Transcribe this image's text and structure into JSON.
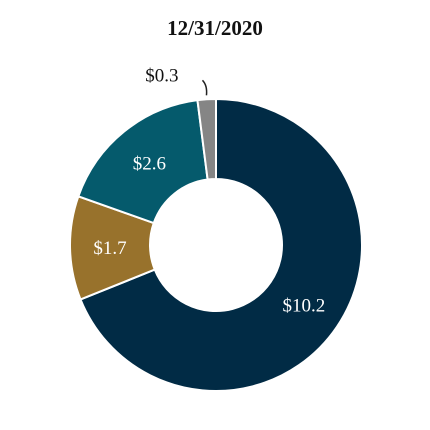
{
  "chart_data": {
    "type": "pie",
    "title": "12/31/2020",
    "categories": [
      "",
      "",
      "",
      ""
    ],
    "values": [
      10.2,
      1.7,
      2.6,
      0.3
    ],
    "labels": [
      "$10.2",
      "$1.7",
      "$2.6",
      "$0.3"
    ],
    "colors": [
      "#012b45",
      "#98722c",
      "#055a6c",
      "#858585"
    ],
    "label_colors": [
      "#ffffff",
      "#ffffff",
      "#ffffff",
      "#111111"
    ]
  }
}
